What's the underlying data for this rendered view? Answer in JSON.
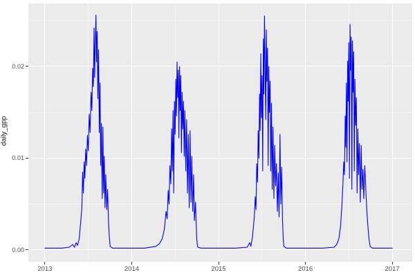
{
  "chart_data": {
    "type": "line",
    "title": "",
    "xlabel": "",
    "ylabel": "daily_gpp",
    "legend": "none",
    "grid": "major white, minor faint white on gray panel (ggplot2 theme_gray)",
    "x_domain": [
      2012.8095,
      2017.2302
    ],
    "y_domain": [
      -0.001283,
      0.026867
    ],
    "x_tick_values": [
      2013,
      2014,
      2015,
      2016,
      2017
    ],
    "x_tick_labels": [
      "2013",
      "2014",
      "2015",
      "2016",
      "2017"
    ],
    "x_minor_values": [
      2013.5,
      2014.5,
      2015.5,
      2016.5
    ],
    "y_tick_values": [
      0.0,
      0.01,
      0.02
    ],
    "y_tick_labels": [
      "0.00",
      "0.01",
      "0.02"
    ],
    "y_minor_values": [
      0.005,
      0.015,
      0.025
    ],
    "series": [
      {
        "name": "daily_gpp",
        "color": "#0000FF",
        "points": [
          [
            2013.0,
            0.0002
          ],
          [
            2013.1,
            0.0002
          ],
          [
            2013.2,
            0.0002
          ],
          [
            2013.28,
            0.0003
          ],
          [
            2013.32,
            0.0006
          ],
          [
            2013.34,
            0.0003
          ],
          [
            2013.36,
            0.0008
          ],
          [
            2013.375,
            0.0005
          ],
          [
            2013.395,
            0.0012
          ],
          [
            2013.41,
            0.0028
          ],
          [
            2013.425,
            0.0045
          ],
          [
            2013.435,
            0.0085
          ],
          [
            2013.443,
            0.0062
          ],
          [
            2013.452,
            0.0096
          ],
          [
            2013.46,
            0.0078
          ],
          [
            2013.47,
            0.011
          ],
          [
            2013.48,
            0.0092
          ],
          [
            2013.49,
            0.0125
          ],
          [
            2013.5,
            0.0108
          ],
          [
            2013.51,
            0.0148
          ],
          [
            2013.52,
            0.0128
          ],
          [
            2013.532,
            0.0172
          ],
          [
            2013.541,
            0.0152
          ],
          [
            2013.55,
            0.0198
          ],
          [
            2013.558,
            0.0178
          ],
          [
            2013.566,
            0.0242
          ],
          [
            2013.573,
            0.0188
          ],
          [
            2013.58,
            0.0222
          ],
          [
            2013.588,
            0.0256
          ],
          [
            2013.595,
            0.0205
          ],
          [
            2013.602,
            0.0238
          ],
          [
            2013.61,
            0.0165
          ],
          [
            2013.618,
            0.0218
          ],
          [
            2013.627,
            0.0128
          ],
          [
            2013.635,
            0.0182
          ],
          [
            2013.643,
            0.0092
          ],
          [
            2013.651,
            0.0138
          ],
          [
            2013.66,
            0.0056
          ],
          [
            2013.668,
            0.0134
          ],
          [
            2013.676,
            0.0062
          ],
          [
            2013.684,
            0.0102
          ],
          [
            2013.692,
            0.0046
          ],
          [
            2013.702,
            0.0082
          ],
          [
            2013.712,
            0.0044
          ],
          [
            2013.722,
            0.0066
          ],
          [
            2013.732,
            0.0032
          ],
          [
            2013.742,
            0.0014
          ],
          [
            2013.752,
            0.0004
          ],
          [
            2013.78,
            0.0002
          ],
          [
            2013.9,
            0.0002
          ],
          [
            2014.0,
            0.0002
          ],
          [
            2014.15,
            0.0002
          ],
          [
            2014.28,
            0.0004
          ],
          [
            2014.32,
            0.0007
          ],
          [
            2014.35,
            0.0012
          ],
          [
            2014.375,
            0.0022
          ],
          [
            2014.395,
            0.0042
          ],
          [
            2014.408,
            0.0034
          ],
          [
            2014.42,
            0.0065
          ],
          [
            2014.43,
            0.005
          ],
          [
            2014.44,
            0.0092
          ],
          [
            2014.45,
            0.0072
          ],
          [
            2014.46,
            0.0132
          ],
          [
            2014.468,
            0.0086
          ],
          [
            2014.476,
            0.0152
          ],
          [
            2014.484,
            0.0062
          ],
          [
            2014.492,
            0.0162
          ],
          [
            2014.5,
            0.0126
          ],
          [
            2014.508,
            0.0186
          ],
          [
            2014.515,
            0.0146
          ],
          [
            2014.522,
            0.0205
          ],
          [
            2014.529,
            0.0166
          ],
          [
            2014.536,
            0.0196
          ],
          [
            2014.543,
            0.0122
          ],
          [
            2014.551,
            0.02
          ],
          [
            2014.558,
            0.0152
          ],
          [
            2014.565,
            0.019
          ],
          [
            2014.572,
            0.0106
          ],
          [
            2014.58,
            0.0172
          ],
          [
            2014.588,
            0.0132
          ],
          [
            2014.596,
            0.0162
          ],
          [
            2014.604,
            0.0102
          ],
          [
            2014.612,
            0.0152
          ],
          [
            2014.622,
            0.0086
          ],
          [
            2014.632,
            0.0142
          ],
          [
            2014.642,
            0.0062
          ],
          [
            2014.652,
            0.0126
          ],
          [
            2014.662,
            0.0046
          ],
          [
            2014.672,
            0.013
          ],
          [
            2014.682,
            0.0052
          ],
          [
            2014.692,
            0.0102
          ],
          [
            2014.702,
            0.0042
          ],
          [
            2014.712,
            0.0082
          ],
          [
            2014.722,
            0.0032
          ],
          [
            2014.735,
            0.0052
          ],
          [
            2014.748,
            0.0012
          ],
          [
            2014.76,
            0.0003
          ],
          [
            2014.8,
            0.0002
          ],
          [
            2014.95,
            0.0002
          ],
          [
            2015.0,
            0.0002
          ],
          [
            2015.2,
            0.0002
          ],
          [
            2015.33,
            0.0003
          ],
          [
            2015.358,
            0.0008
          ],
          [
            2015.372,
            0.0004
          ],
          [
            2015.39,
            0.0014
          ],
          [
            2015.412,
            0.0036
          ],
          [
            2015.422,
            0.0058
          ],
          [
            2015.431,
            0.0044
          ],
          [
            2015.44,
            0.0094
          ],
          [
            2015.448,
            0.0074
          ],
          [
            2015.456,
            0.013
          ],
          [
            2015.464,
            0.01
          ],
          [
            2015.472,
            0.017
          ],
          [
            2015.479,
            0.013
          ],
          [
            2015.487,
            0.0214
          ],
          [
            2015.494,
            0.0144
          ],
          [
            2015.501,
            0.019
          ],
          [
            2015.508,
            0.0086
          ],
          [
            2015.515,
            0.023
          ],
          [
            2015.522,
            0.017
          ],
          [
            2015.529,
            0.0255
          ],
          [
            2015.536,
            0.02
          ],
          [
            2015.543,
            0.0142
          ],
          [
            2015.55,
            0.024
          ],
          [
            2015.557,
            0.0184
          ],
          [
            2015.564,
            0.022
          ],
          [
            2015.571,
            0.0092
          ],
          [
            2015.578,
            0.02
          ],
          [
            2015.585,
            0.015
          ],
          [
            2015.593,
            0.0184
          ],
          [
            2015.601,
            0.0086
          ],
          [
            2015.609,
            0.016
          ],
          [
            2015.618,
            0.0066
          ],
          [
            2015.627,
            0.0134
          ],
          [
            2015.637,
            0.0056
          ],
          [
            2015.647,
            0.0114
          ],
          [
            2015.657,
            0.007
          ],
          [
            2015.667,
            0.0094
          ],
          [
            2015.677,
            0.0042
          ],
          [
            2015.687,
            0.0084
          ],
          [
            2015.697,
            0.0036
          ],
          [
            2015.707,
            0.0126
          ],
          [
            2015.717,
            0.005
          ],
          [
            2015.727,
            0.009
          ],
          [
            2015.736,
            0.0034
          ],
          [
            2015.744,
            0.0014
          ],
          [
            2015.752,
            0.0004
          ],
          [
            2015.78,
            0.0002
          ],
          [
            2015.9,
            0.0002
          ],
          [
            2016.0,
            0.0002
          ],
          [
            2016.2,
            0.0002
          ],
          [
            2016.33,
            0.0003
          ],
          [
            2016.36,
            0.0006
          ],
          [
            2016.385,
            0.0012
          ],
          [
            2016.405,
            0.0026
          ],
          [
            2016.42,
            0.0048
          ],
          [
            2016.432,
            0.0072
          ],
          [
            2016.442,
            0.0096
          ],
          [
            2016.45,
            0.0082
          ],
          [
            2016.458,
            0.0146
          ],
          [
            2016.465,
            0.0112
          ],
          [
            2016.472,
            0.0182
          ],
          [
            2016.479,
            0.0096
          ],
          [
            2016.486,
            0.0206
          ],
          [
            2016.493,
            0.0162
          ],
          [
            2016.5,
            0.0226
          ],
          [
            2016.507,
            0.0078
          ],
          [
            2016.514,
            0.0246
          ],
          [
            2016.521,
            0.0196
          ],
          [
            2016.528,
            0.0232
          ],
          [
            2016.535,
            0.0066
          ],
          [
            2016.542,
            0.0228
          ],
          [
            2016.549,
            0.0172
          ],
          [
            2016.556,
            0.0216
          ],
          [
            2016.563,
            0.0086
          ],
          [
            2016.571,
            0.0186
          ],
          [
            2016.579,
            0.0136
          ],
          [
            2016.587,
            0.0166
          ],
          [
            2016.595,
            0.0062
          ],
          [
            2016.604,
            0.0132
          ],
          [
            2016.613,
            0.0082
          ],
          [
            2016.622,
            0.0116
          ],
          [
            2016.632,
            0.0052
          ],
          [
            2016.642,
            0.0114
          ],
          [
            2016.652,
            0.0066
          ],
          [
            2016.662,
            0.0088
          ],
          [
            2016.672,
            0.0056
          ],
          [
            2016.684,
            0.0092
          ],
          [
            2016.696,
            0.0066
          ],
          [
            2016.708,
            0.0042
          ],
          [
            2016.72,
            0.0026
          ],
          [
            2016.732,
            0.0012
          ],
          [
            2016.745,
            0.0004
          ],
          [
            2016.77,
            0.0002
          ],
          [
            2016.9,
            0.0002
          ],
          [
            2017.0,
            0.0002
          ]
        ]
      }
    ]
  },
  "style": {
    "plot_bg": "#FFFFFF",
    "panel_bg": "#EBEBEB",
    "grid_major": "#FFFFFF",
    "grid_minor": "#F5F5F5",
    "line_color": "#0000FF",
    "tick_label_color": "#4D4D4D",
    "axis_title_color": "#1A1A1A",
    "tick_mark_color": "#333333"
  }
}
